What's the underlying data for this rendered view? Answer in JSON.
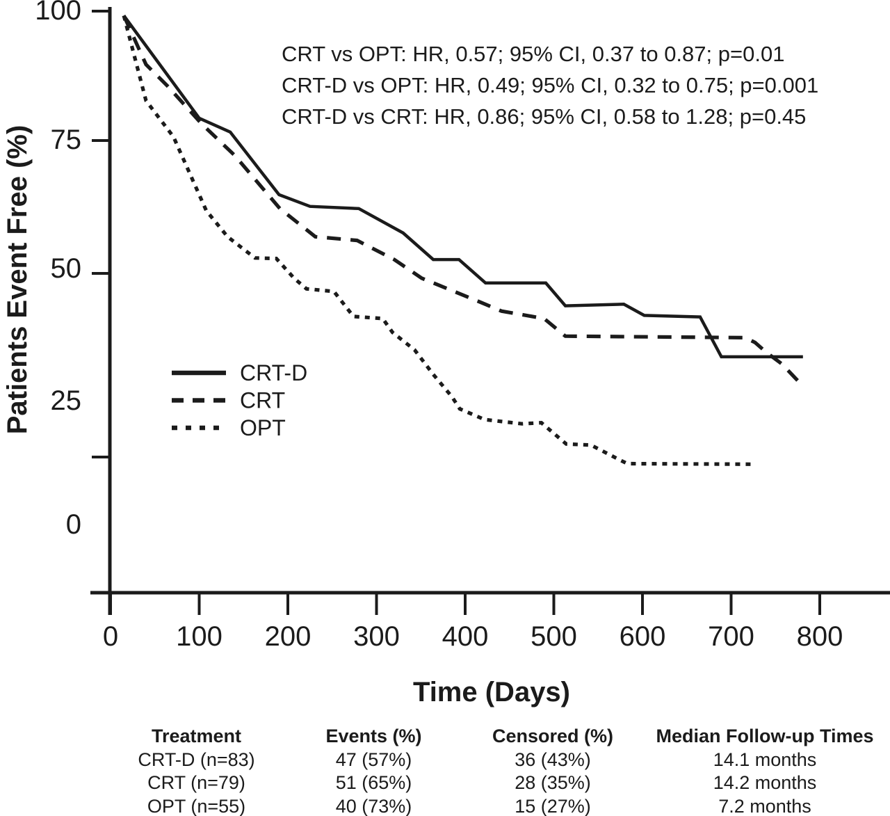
{
  "colors": {
    "ink": "#1b1b1b",
    "background": "#ffffff"
  },
  "chart_data": {
    "type": "line",
    "title": "",
    "xlabel": "Time (Days)",
    "ylabel": "Patients Event Free (%)",
    "xlim": [
      0,
      800
    ],
    "ylim": [
      0,
      100
    ],
    "x_ticks": [
      "0",
      "100",
      "200",
      "300",
      "400",
      "500",
      "600",
      "700",
      "800"
    ],
    "y_ticks": [
      "100",
      "75",
      "50",
      "25",
      "0"
    ],
    "grid": false,
    "legend_position": "inside-left-middle",
    "annotations": [
      "CRT vs OPT: HR, 0.57; 95% CI, 0.37 to 0.87; p=0.01",
      "CRT-D vs OPT: HR, 0.49; 95% CI, 0.32 to 0.75; p=0.001",
      "CRT-D vs CRT: HR, 0.86; 95% CI, 0.58 to 1.28; p=0.45"
    ],
    "series": [
      {
        "name": "CRT-D",
        "line": "solid",
        "points": [
          [
            15,
            98.5
          ],
          [
            100,
            79.2
          ],
          [
            135,
            76.6
          ],
          [
            190,
            64.8
          ],
          [
            225,
            62.6
          ],
          [
            280,
            62.2
          ],
          [
            330,
            57.6
          ],
          [
            364,
            52.6
          ],
          [
            393,
            52.6
          ],
          [
            423,
            48.2
          ],
          [
            491,
            48.2
          ],
          [
            513,
            43.9
          ],
          [
            579,
            44.2
          ],
          [
            602,
            42.1
          ],
          [
            665,
            41.8
          ],
          [
            689,
            34.3
          ],
          [
            781,
            34.3
          ]
        ]
      },
      {
        "name": "CRT",
        "line": "dashed",
        "points": [
          [
            15,
            98.5
          ],
          [
            40,
            89.3
          ],
          [
            64,
            85.3
          ],
          [
            103,
            78.1
          ],
          [
            140,
            72.2
          ],
          [
            191,
            62.2
          ],
          [
            231,
            56.9
          ],
          [
            278,
            56.2
          ],
          [
            320,
            52.6
          ],
          [
            351,
            49.1
          ],
          [
            414,
            44.8
          ],
          [
            441,
            42.9
          ],
          [
            489,
            41.5
          ],
          [
            513,
            38.2
          ],
          [
            716,
            37.9
          ],
          [
            727,
            37.0
          ],
          [
            740,
            35.1
          ],
          [
            757,
            33.0
          ],
          [
            781,
            28.8
          ]
        ]
      },
      {
        "name": "OPT",
        "line": "dotted",
        "points": [
          [
            15,
            98.5
          ],
          [
            40,
            82.5
          ],
          [
            71,
            75.7
          ],
          [
            108,
            61.8
          ],
          [
            132,
            56.9
          ],
          [
            152,
            54.3
          ],
          [
            163,
            52.9
          ],
          [
            187,
            52.8
          ],
          [
            207,
            49.1
          ],
          [
            221,
            47.1
          ],
          [
            252,
            46.6
          ],
          [
            274,
            41.9
          ],
          [
            307,
            41.5
          ],
          [
            318,
            38.9
          ],
          [
            343,
            35.6
          ],
          [
            364,
            31.0
          ],
          [
            385,
            26.8
          ],
          [
            394,
            24.5
          ],
          [
            422,
            22.5
          ],
          [
            464,
            21.7
          ],
          [
            486,
            21.9
          ],
          [
            514,
            17.9
          ],
          [
            542,
            17.7
          ],
          [
            572,
            15.1
          ],
          [
            583,
            14.2
          ],
          [
            724,
            14.1
          ]
        ]
      }
    ]
  },
  "table": {
    "headers": [
      "Treatment",
      "Events (%)",
      "Censored (%)",
      "Median Follow-up Times"
    ],
    "rows": [
      [
        "CRT-D (n=83)",
        "47 (57%)",
        "36 (43%)",
        "14.1 months"
      ],
      [
        "CRT (n=79)",
        "51 (65%)",
        "28 (35%)",
        "14.2 months"
      ],
      [
        "OPT (n=55)",
        "40 (73%)",
        "15 (27%)",
        "7.2 months"
      ]
    ]
  }
}
